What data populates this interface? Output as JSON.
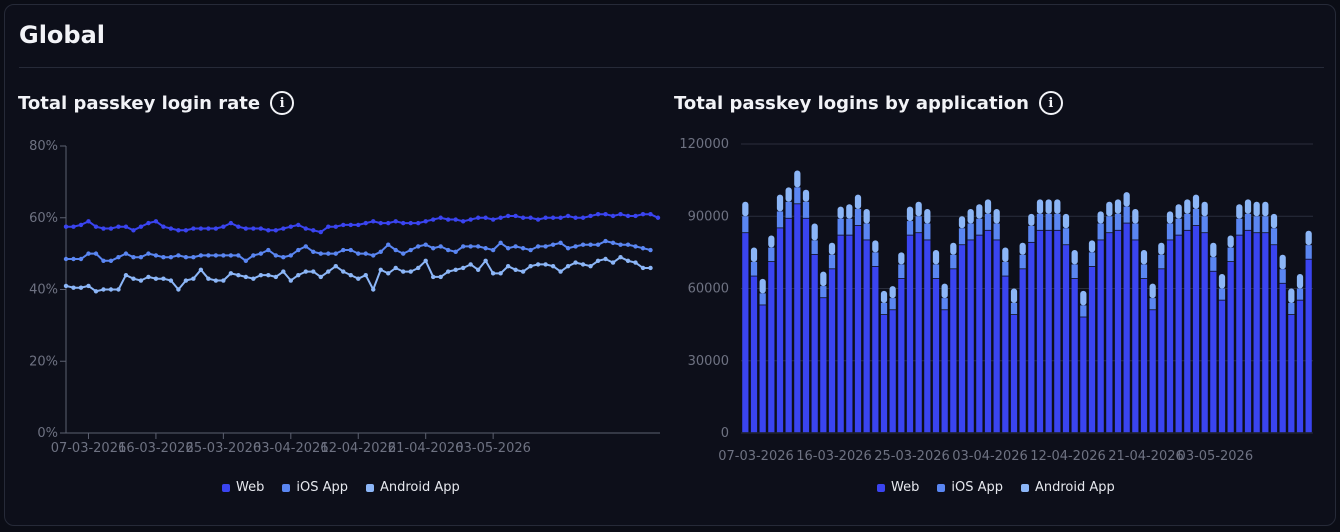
{
  "page": {
    "title": "Global"
  },
  "colors": {
    "web": "#3a44f0",
    "ios": "#5a86f2",
    "android": "#8cb6f7",
    "grid": "#2a2e3c",
    "axis": "#5c6070",
    "tick": "#6e7282"
  },
  "icons": {
    "info": "info-icon"
  },
  "info_glyph": "i",
  "chart_data": [
    {
      "type": "line",
      "title": "Total passkey login rate",
      "ylim": [
        0,
        80
      ],
      "yticks": [
        "80%",
        "60%",
        "40%",
        "20%",
        "0%"
      ],
      "ytick_values": [
        80,
        60,
        40,
        20,
        0
      ],
      "xticks": [
        "07-03-2026",
        "16-03-2026",
        "25-03-2026",
        "03-04-2026",
        "12-04-2026",
        "21-04-2026",
        "03-05-2026"
      ],
      "xtick_index": [
        3,
        12,
        21,
        30,
        39,
        48,
        57
      ],
      "grid": false,
      "legend_position": "bottom",
      "series": [
        {
          "name": "Web",
          "values": [
            57.5,
            57.5,
            58,
            59,
            57.5,
            57,
            57,
            57.5,
            57.5,
            56.5,
            57.5,
            58.5,
            59,
            57.5,
            57,
            56.5,
            56.5,
            57,
            57,
            57,
            57,
            57.5,
            58.5,
            57.5,
            57,
            57,
            57,
            56.5,
            56.5,
            57,
            57.5,
            58,
            57,
            56.5,
            56,
            57.5,
            57.5,
            58,
            58,
            58,
            58.5,
            59,
            58.5,
            58.5,
            59,
            58.5,
            58.5,
            58.5,
            59,
            59.5,
            60,
            59.5,
            59.5,
            59,
            59.5,
            60,
            60,
            59.5,
            60,
            60.5,
            60.5,
            60,
            60,
            59.5,
            60,
            60,
            60,
            60.5,
            60,
            60,
            60.5,
            61,
            61,
            60.5,
            61,
            60.5,
            60.5,
            61,
            61,
            60
          ]
        },
        {
          "name": "iOS App",
          "values": [
            48.5,
            48.5,
            48.5,
            50,
            50,
            48,
            48,
            49,
            50,
            49,
            49,
            50,
            49.5,
            49,
            49,
            49.5,
            49,
            49,
            49.5,
            49.5,
            49.5,
            49.5,
            49.5,
            49.5,
            48,
            49.5,
            50,
            51,
            49.5,
            49,
            49.5,
            51,
            52,
            50.5,
            50,
            50,
            50,
            51,
            51,
            50,
            50,
            49.5,
            50.5,
            52.5,
            51,
            50,
            51,
            52,
            52.5,
            51.5,
            52,
            51,
            50.5,
            52,
            52,
            52,
            51.5,
            51,
            53,
            51.5,
            52,
            51.5,
            51,
            52,
            52,
            52.5,
            53,
            51.5,
            52,
            52.5,
            52.5,
            52.5,
            53.5,
            53,
            52.5,
            52.5,
            52,
            51.5,
            51
          ]
        },
        {
          "name": "Android App",
          "values": [
            41,
            40.5,
            40.5,
            41,
            39.5,
            40,
            40,
            40,
            44,
            43,
            42.5,
            43.5,
            43,
            43,
            42.5,
            40,
            42.5,
            43,
            45.5,
            43,
            42.5,
            42.5,
            44.5,
            44,
            43.5,
            43,
            44,
            44,
            43.5,
            45,
            42.5,
            44,
            45,
            45,
            43.5,
            45,
            46.5,
            45,
            44,
            43,
            44,
            40,
            45.5,
            44.5,
            46,
            45,
            45,
            46,
            48,
            43.5,
            43.5,
            45,
            45.5,
            46,
            47,
            45.5,
            48,
            44.5,
            44.5,
            46.5,
            45.5,
            45,
            46.5,
            47,
            47,
            46.5,
            45,
            46.5,
            47.5,
            47,
            46.5,
            48,
            48.5,
            47.5,
            49,
            48,
            47.5,
            46,
            46
          ]
        }
      ]
    },
    {
      "type": "bar",
      "title": "Total passkey logins by application",
      "stacked": true,
      "ylim": [
        0,
        120000
      ],
      "yticks": [
        "120000",
        "90000",
        "60000",
        "30000",
        "0"
      ],
      "ytick_values": [
        120000,
        90000,
        60000,
        30000,
        0
      ],
      "xticks": [
        "07-03-2026",
        "16-03-2026",
        "25-03-2026",
        "03-04-2026",
        "12-04-2026",
        "21-04-2026",
        "03-05-2026"
      ],
      "xtick_index": [
        1,
        10,
        19,
        28,
        37,
        46,
        54
      ],
      "grid": true,
      "legend_position": "bottom",
      "series": [
        {
          "name": "Web",
          "values": [
            83000,
            65000,
            53000,
            71000,
            85000,
            89000,
            95000,
            89000,
            74000,
            56000,
            68000,
            82000,
            82000,
            86000,
            80000,
            69000,
            49000,
            51000,
            64000,
            82000,
            83000,
            80000,
            64000,
            51000,
            68000,
            78000,
            80000,
            82000,
            84000,
            80000,
            65000,
            49000,
            68000,
            79000,
            84000,
            84000,
            84000,
            78000,
            64000,
            48000,
            69000,
            80000,
            83000,
            84000,
            87000,
            80000,
            64000,
            51000,
            68000,
            80000,
            82000,
            84000,
            86000,
            83000,
            67000,
            55000,
            71000,
            82000,
            84000,
            83000,
            83000,
            78000,
            62000,
            49000,
            55000,
            72000
          ]
        },
        {
          "name": "iOS App",
          "values": [
            7000,
            6000,
            5000,
            6000,
            7000,
            7000,
            7000,
            7000,
            6000,
            5000,
            6000,
            7000,
            7000,
            7000,
            7000,
            6000,
            5000,
            5000,
            6000,
            6000,
            7000,
            7000,
            6000,
            5000,
            6000,
            7000,
            7000,
            7000,
            7000,
            7000,
            6000,
            5000,
            6000,
            7000,
            7000,
            7000,
            7000,
            7000,
            6000,
            5000,
            6000,
            7000,
            7000,
            7000,
            7000,
            7000,
            6000,
            5000,
            6000,
            7000,
            7000,
            7000,
            7000,
            7000,
            6000,
            5000,
            6000,
            7000,
            7000,
            7000,
            7000,
            7000,
            6000,
            5000,
            5000,
            6000
          ]
        },
        {
          "name": "Android App",
          "values": [
            6000,
            6000,
            6000,
            5000,
            7000,
            6000,
            7000,
            5000,
            7000,
            6000,
            5000,
            5000,
            6000,
            6000,
            6000,
            5000,
            5000,
            5000,
            5000,
            6000,
            6000,
            6000,
            6000,
            6000,
            5000,
            5000,
            6000,
            6000,
            6000,
            6000,
            6000,
            6000,
            5000,
            5000,
            6000,
            6000,
            6000,
            6000,
            6000,
            6000,
            5000,
            5000,
            6000,
            6000,
            6000,
            6000,
            6000,
            6000,
            5000,
            5000,
            6000,
            6000,
            6000,
            6000,
            6000,
            6000,
            5000,
            6000,
            6000,
            6000,
            6000,
            6000,
            6000,
            6000,
            6000,
            6000
          ]
        }
      ]
    }
  ]
}
